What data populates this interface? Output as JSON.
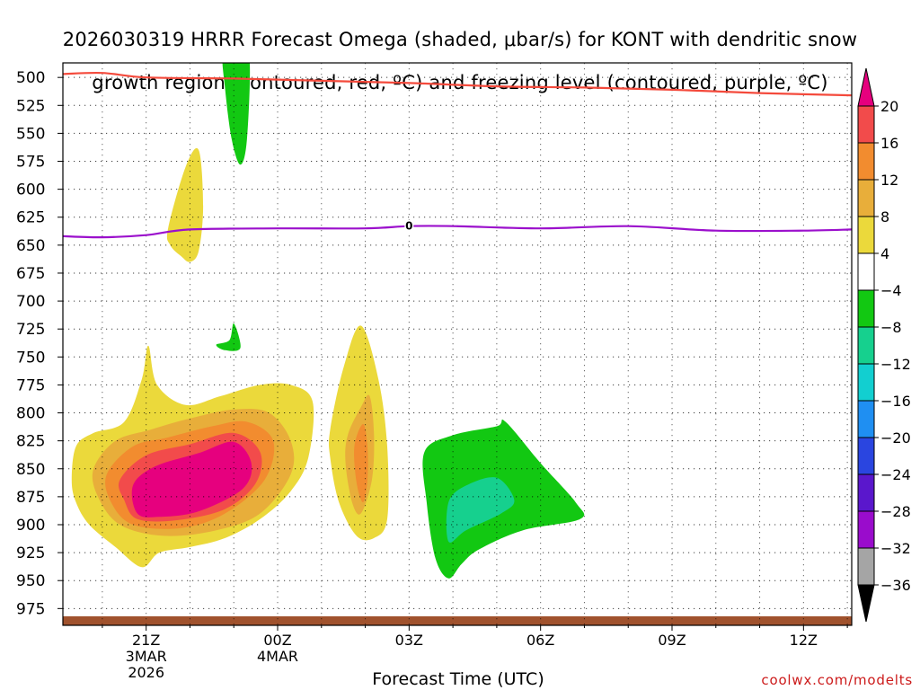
{
  "chart_data": {
    "type": "heatmap",
    "title_line1": "2026030319 HRRR Forecast Omega (shaded, μbar/s) for KONT with dendritic snow",
    "title_line2": "growth region (contoured, red, ºC) and freezing level (contoured, purple, ºC)",
    "xlabel": "Forecast Time (UTC)",
    "ylabel": "",
    "credit": "coolwx.com/modelts",
    "x_range_hours": [
      -1.9,
      16.1
    ],
    "y_range_hPa": [
      990,
      487
    ],
    "x_ticks": [
      {
        "hour": 0,
        "line1": "21Z",
        "line2": "3MAR",
        "line3": "2026"
      },
      {
        "hour": 3,
        "line1": "00Z",
        "line2": "4MAR",
        "line3": ""
      },
      {
        "hour": 6,
        "line1": "03Z",
        "line2": "",
        "line3": ""
      },
      {
        "hour": 9,
        "line1": "06Z",
        "line2": "",
        "line3": ""
      },
      {
        "hour": 12,
        "line1": "09Z",
        "line2": "",
        "line3": ""
      },
      {
        "hour": 15,
        "line1": "12Z",
        "line2": "",
        "line3": ""
      }
    ],
    "y_ticks": [
      500,
      525,
      550,
      575,
      600,
      625,
      650,
      675,
      700,
      725,
      750,
      775,
      800,
      825,
      850,
      875,
      900,
      925,
      950,
      975
    ],
    "colorbar": {
      "levels": [
        20,
        16,
        12,
        8,
        4,
        -4,
        -8,
        -12,
        -16,
        -20,
        -24,
        -28,
        -32,
        -36
      ],
      "colors": [
        "#e6007e",
        "#f24b4b",
        "#f28c2f",
        "#e8ae3a",
        "#ebd93b",
        "#ffffff",
        "#12c812",
        "#16d08e",
        "#12cfd0",
        "#1f8ff2",
        "#2a45e0",
        "#5a17cc",
        "#9a0ccc",
        "#a5a5a5",
        "#000000"
      ]
    },
    "contours": {
      "dendritic_growth": {
        "name": "dendritic snow growth region",
        "color": "#f44a3c",
        "x": [
          -1.9,
          -1.0,
          0.0,
          2.0,
          4.0,
          6.0,
          8.0,
          10.0,
          12.0,
          14.0,
          16.1
        ],
        "y": [
          497,
          496,
          500,
          501,
          503,
          505,
          508,
          509,
          511,
          514,
          516
        ]
      },
      "freezing_level": {
        "name": "freezing level",
        "color": "#9b10cc",
        "label": "0",
        "x": [
          -1.9,
          -1.0,
          0.0,
          1.0,
          3.0,
          5.0,
          6.0,
          7.0,
          9.0,
          11.0,
          13.0,
          15.0,
          16.1
        ],
        "y": [
          642,
          643,
          641,
          636,
          635,
          635,
          633,
          633,
          635,
          633,
          637,
          637,
          636
        ]
      }
    },
    "omega_regions": [
      {
        "value": 4,
        "x": [
          -1.7,
          -1.6,
          -1.2,
          -0.5,
          -0.1,
          0.05,
          0.25,
          0.9,
          1.7,
          2.6,
          3.3,
          3.8,
          3.7,
          3.3,
          2.6,
          1.8,
          1.0,
          0.3,
          -0.1,
          -0.7,
          -1.3,
          -1.6
        ],
        "y": [
          860,
          830,
          818,
          808,
          770,
          740,
          775,
          793,
          785,
          775,
          775,
          790,
          840,
          870,
          895,
          912,
          920,
          925,
          938,
          920,
          900,
          880
        ]
      },
      {
        "value": 8,
        "x": [
          -1.2,
          -0.7,
          0.1,
          1.0,
          2.0,
          2.8,
          3.3,
          3.3,
          2.6,
          1.6,
          0.4,
          -0.6,
          -1.1
        ],
        "y": [
          850,
          825,
          815,
          805,
          797,
          800,
          825,
          855,
          890,
          905,
          910,
          900,
          875
        ]
      },
      {
        "value": 12,
        "x": [
          -0.9,
          -0.3,
          0.5,
          1.5,
          2.3,
          2.9,
          2.7,
          1.8,
          0.8,
          -0.3,
          -0.8
        ],
        "y": [
          855,
          830,
          822,
          812,
          808,
          825,
          860,
          890,
          903,
          900,
          880
        ]
      },
      {
        "value": 16,
        "x": [
          -0.6,
          0.0,
          1.0,
          2.0,
          2.6,
          2.5,
          1.8,
          0.7,
          -0.2,
          -0.5
        ],
        "y": [
          860,
          838,
          828,
          818,
          835,
          863,
          886,
          896,
          895,
          878
        ]
      },
      {
        "value": 20,
        "x": [
          -0.3,
          0.2,
          1.2,
          2.0,
          2.4,
          2.2,
          1.2,
          0.3,
          -0.2
        ],
        "y": [
          865,
          848,
          836,
          826,
          845,
          868,
          888,
          893,
          890
        ]
      },
      {
        "value": 4,
        "x": [
          0.5,
          0.9,
          1.2,
          1.3,
          1.2,
          1.0,
          0.8,
          0.55
        ],
        "y": [
          635,
          580,
          565,
          615,
          655,
          665,
          660,
          650
        ]
      },
      {
        "value": 4,
        "x": [
          4.2,
          4.5,
          4.9,
          5.3,
          5.5,
          5.5,
          5.2,
          4.8,
          4.4,
          4.2
        ],
        "y": [
          815,
          760,
          722,
          770,
          830,
          895,
          912,
          910,
          880,
          840
        ]
      },
      {
        "value": 8,
        "x": [
          4.6,
          4.9,
          5.1,
          5.2,
          5.15,
          4.9,
          4.7,
          4.55
        ],
        "y": [
          820,
          795,
          785,
          820,
          860,
          890,
          880,
          845
        ]
      },
      {
        "value": 12,
        "x": [
          4.75,
          4.95,
          5.05,
          5.05,
          4.95,
          4.8
        ],
        "y": [
          830,
          810,
          830,
          860,
          880,
          862
        ]
      },
      {
        "value": -4,
        "x": [
          1.75,
          2.0,
          2.35,
          2.3,
          2.15,
          1.95,
          1.8
        ],
        "y": [
          480,
          480,
          480,
          555,
          578,
          555,
          510
        ]
      },
      {
        "value": -4,
        "x": [
          1.6,
          1.9,
          2.0,
          2.15,
          1.8
        ],
        "y": [
          739,
          735,
          720,
          742,
          744
        ]
      },
      {
        "value": -4,
        "x": [
          6.35,
          7.0,
          8.0,
          8.2,
          9.0,
          9.8,
          9.9,
          8.6,
          7.6,
          7.2,
          6.9,
          6.6,
          6.4
        ],
        "y": [
          835,
          820,
          812,
          808,
          845,
          880,
          895,
          905,
          922,
          935,
          948,
          930,
          880
        ]
      },
      {
        "value": -8,
        "x": [
          6.9,
          7.3,
          8.0,
          8.4,
          8.1,
          7.3,
          6.9
        ],
        "y": [
          880,
          865,
          858,
          878,
          890,
          905,
          915
        ]
      }
    ]
  }
}
